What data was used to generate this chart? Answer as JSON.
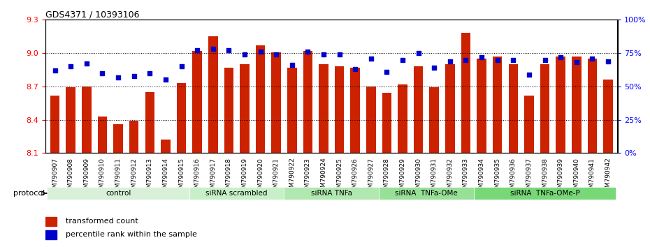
{
  "title": "GDS4371 / 10393106",
  "samples": [
    "GSM790907",
    "GSM790908",
    "GSM790909",
    "GSM790910",
    "GSM790911",
    "GSM790912",
    "GSM790913",
    "GSM790914",
    "GSM790915",
    "GSM790916",
    "GSM790917",
    "GSM790918",
    "GSM790919",
    "GSM790920",
    "GSM790921",
    "GSM790922",
    "GSM790923",
    "GSM790924",
    "GSM790925",
    "GSM790926",
    "GSM790927",
    "GSM790928",
    "GSM790929",
    "GSM790930",
    "GSM790931",
    "GSM790932",
    "GSM790933",
    "GSM790934",
    "GSM790935",
    "GSM790936",
    "GSM790937",
    "GSM790938",
    "GSM790939",
    "GSM790940",
    "GSM790941",
    "GSM790942"
  ],
  "transformed_count": [
    8.62,
    8.69,
    8.7,
    8.43,
    8.36,
    8.39,
    8.65,
    8.22,
    8.73,
    9.02,
    9.15,
    8.87,
    8.9,
    9.07,
    9.01,
    8.87,
    9.02,
    8.9,
    8.88,
    8.87,
    8.7,
    8.64,
    8.72,
    8.88,
    8.69,
    8.9,
    9.18,
    8.95,
    8.97,
    8.9,
    8.62,
    8.9,
    8.97,
    8.97,
    8.95,
    8.76
  ],
  "percentile_rank": [
    62,
    65,
    67,
    60,
    57,
    58,
    60,
    55,
    65,
    77,
    78,
    77,
    74,
    76,
    74,
    66,
    76,
    74,
    74,
    63,
    71,
    61,
    70,
    75,
    64,
    69,
    70,
    72,
    70,
    70,
    59,
    70,
    72,
    68,
    71,
    69
  ],
  "groups": [
    {
      "label": "control",
      "start": 0,
      "end": 8,
      "color": "#d8f0d8"
    },
    {
      "label": "siRNA scrambled",
      "start": 9,
      "end": 14,
      "color": "#c8f0c8"
    },
    {
      "label": "siRNA TNFa",
      "start": 15,
      "end": 20,
      "color": "#b0e8b0"
    },
    {
      "label": "siRNA  TNFa-OMe",
      "start": 21,
      "end": 26,
      "color": "#98e098"
    },
    {
      "label": "siRNA  TNFa-OMe-P",
      "start": 27,
      "end": 35,
      "color": "#78d878"
    }
  ],
  "ylim_left": [
    8.1,
    9.3
  ],
  "ylim_right": [
    0,
    100
  ],
  "bar_color": "#cc2200",
  "dot_color": "#0000cc",
  "bg_color": "#ffffff",
  "grid_color": "#000000",
  "yticks_left": [
    8.1,
    8.4,
    8.7,
    9.0,
    9.3
  ],
  "yticks_right": [
    0,
    25,
    50,
    75,
    100
  ]
}
